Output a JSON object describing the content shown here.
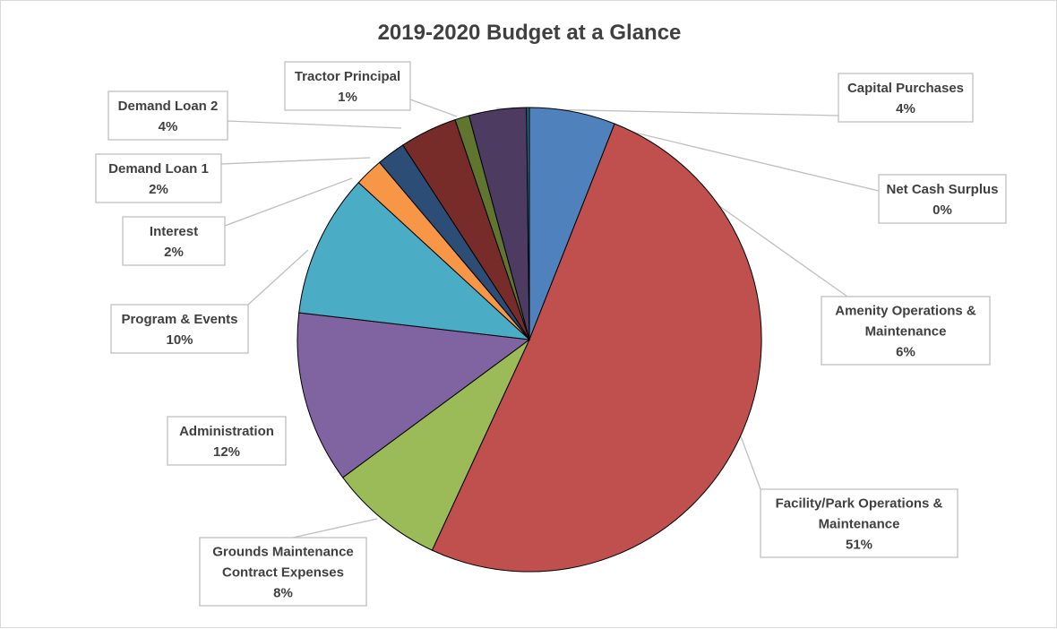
{
  "chart_data": {
    "type": "pie",
    "title": "2019-2020 Budget at a Glance",
    "slices": [
      {
        "name": "Amenity Operations & Maintenance",
        "value": 6,
        "label": "6%",
        "color": "#4f81bd"
      },
      {
        "name": "Facility/Park Operations & Maintenance",
        "value": 51,
        "label": "51%",
        "color": "#c0504d"
      },
      {
        "name": "Grounds Maintenance Contract Expenses",
        "value": 8,
        "label": "8%",
        "color": "#9bbb59"
      },
      {
        "name": "Administration",
        "value": 12,
        "label": "12%",
        "color": "#8064a2"
      },
      {
        "name": "Program & Events",
        "value": 10,
        "label": "10%",
        "color": "#4bacc6"
      },
      {
        "name": "Interest",
        "value": 2,
        "label": "2%",
        "color": "#f79646"
      },
      {
        "name": "Demand Loan 1",
        "value": 2,
        "label": "2%",
        "color": "#2c4d75"
      },
      {
        "name": "Demand Loan 2",
        "value": 4,
        "label": "4%",
        "color": "#772c2a"
      },
      {
        "name": "Tractor Principal",
        "value": 1,
        "label": "1%",
        "color": "#5f7530"
      },
      {
        "name": "Capital Purchases",
        "value": 4,
        "label": "4%",
        "color": "#4d3b62"
      },
      {
        "name": "Net Cash Surplus",
        "value": 0.2,
        "label": "0%",
        "color": "#276a7c"
      }
    ]
  }
}
